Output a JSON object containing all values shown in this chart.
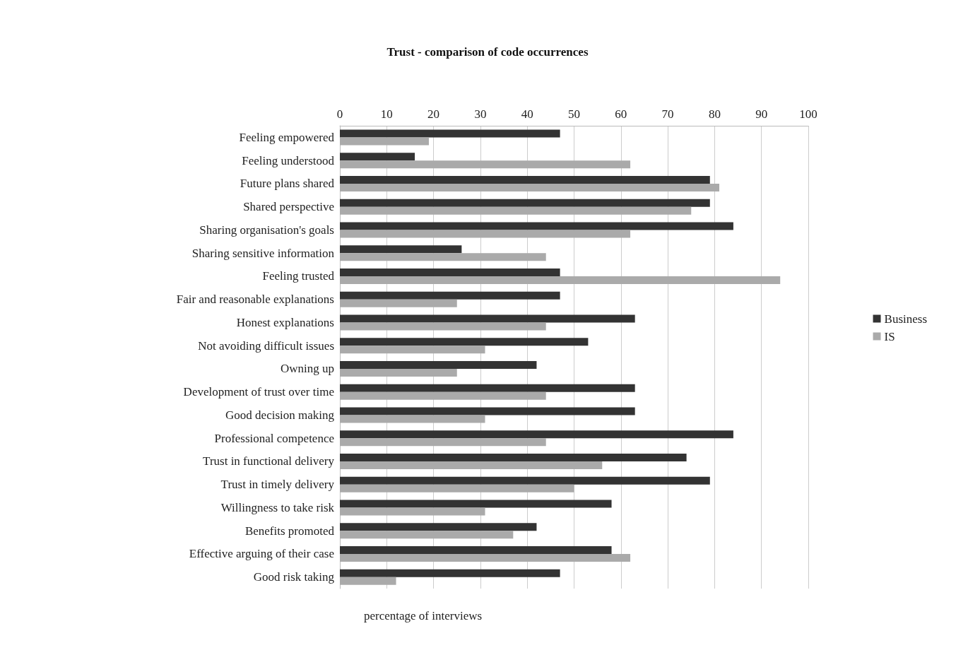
{
  "chart_data": {
    "type": "bar",
    "orientation": "horizontal",
    "title": "Trust - comparison of code occurrences",
    "xlabel": "percentage of interviews",
    "categories": [
      "Feeling empowered",
      "Feeling understood",
      "Future plans shared",
      "Shared perspective",
      "Sharing organisation's goals",
      "Sharing sensitive information",
      "Feeling trusted",
      "Fair and reasonable explanations",
      "Honest explanations",
      "Not avoiding difficult issues",
      "Owning up",
      "Development of trust over time",
      "Good decision making",
      "Professional competence",
      "Trust in functional delivery",
      "Trust in timely delivery",
      "Willingness to take risk",
      "Benefits promoted",
      "Effective arguing of their case",
      "Good risk taking"
    ],
    "series": [
      {
        "name": "Business",
        "color": "#333333",
        "values": [
          47,
          16,
          79,
          79,
          84,
          26,
          47,
          47,
          63,
          53,
          42,
          63,
          63,
          84,
          74,
          79,
          58,
          42,
          58,
          47
        ]
      },
      {
        "name": "IS",
        "color": "#aaaaaa",
        "values": [
          19,
          62,
          81,
          75,
          62,
          44,
          94,
          25,
          44,
          31,
          25,
          44,
          31,
          44,
          56,
          50,
          31,
          37,
          62,
          12
        ]
      }
    ],
    "xlim": [
      0,
      100
    ],
    "xticks": [
      0,
      10,
      20,
      30,
      40,
      50,
      60,
      70,
      80,
      90,
      100
    ],
    "grid": "x",
    "legend": "right"
  }
}
